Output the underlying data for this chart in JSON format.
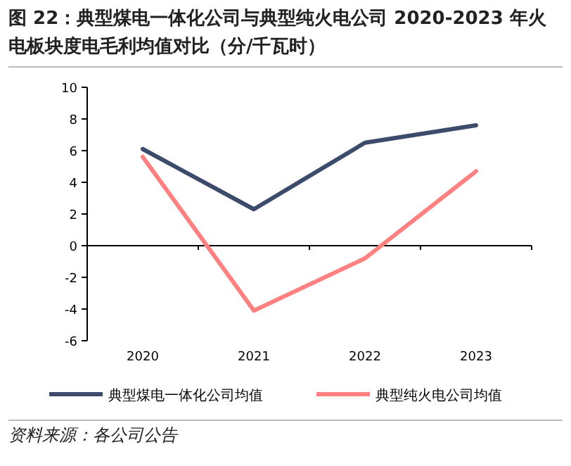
{
  "chart_data": {
    "type": "line",
    "title": "图 22：典型煤电一体化公司与典型纯火电公司 2020-2023 年火电板块度电毛利均值对比（分/千瓦时）",
    "categories": [
      "2020",
      "2021",
      "2022",
      "2023"
    ],
    "series": [
      {
        "name": "典型煤电一体化公司均值",
        "color": "#3c4a6b",
        "values": [
          6.1,
          2.3,
          6.5,
          7.6
        ]
      },
      {
        "name": "典型纯火电公司均值",
        "color": "#ff8080",
        "values": [
          5.6,
          -4.1,
          -0.8,
          4.7
        ]
      }
    ],
    "ylim": [
      -6,
      10
    ],
    "yticks": [
      -6,
      -4,
      -2,
      0,
      2,
      4,
      6,
      8,
      10
    ],
    "legend": "bottom",
    "marker": "none",
    "line_style": "solid",
    "annotations": [
      "资料来源：各公司公告"
    ]
  }
}
